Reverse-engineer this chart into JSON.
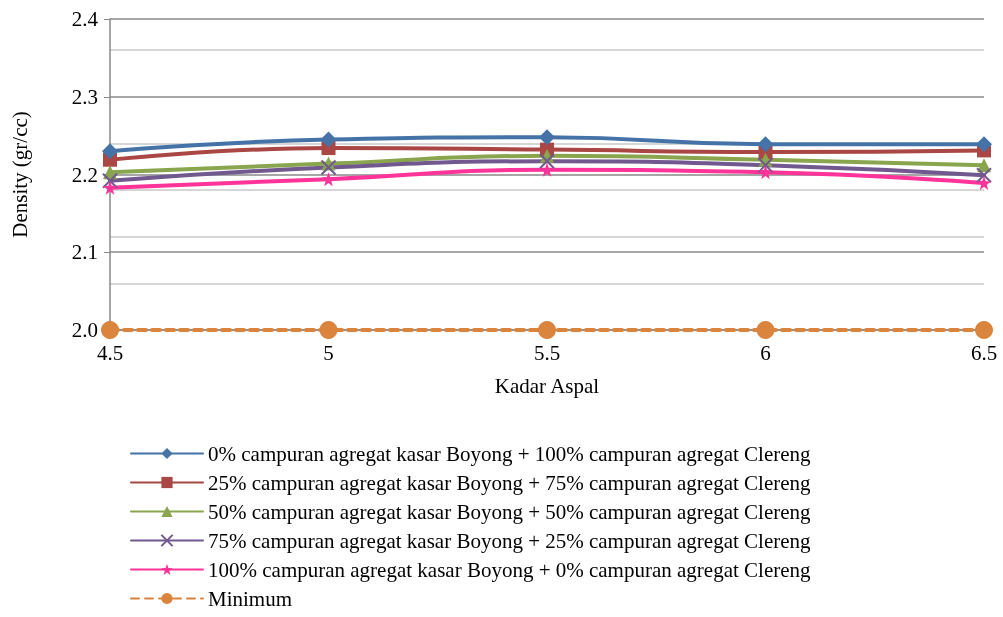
{
  "chart_data": {
    "type": "line",
    "xlabel": "Kadar Aspal",
    "ylabel": "Density (gr/cc)",
    "x": [
      4.5,
      5,
      5.5,
      6,
      6.5
    ],
    "xlim": [
      4.5,
      6.5
    ],
    "xticks": [
      4.5,
      5,
      5.5,
      6,
      6.5
    ],
    "ylim": [
      2.0,
      2.4
    ],
    "yticks": [
      {
        "value": 2.0,
        "label": "2.0"
      },
      {
        "value": 2.06,
        "label": null
      },
      {
        "value": 2.1,
        "label": "2.1"
      },
      {
        "value": 2.12,
        "label": null
      },
      {
        "value": 2.18,
        "label": null
      },
      {
        "value": 2.2,
        "label": "2.2"
      },
      {
        "value": 2.24,
        "label": null
      },
      {
        "value": 2.3,
        "label": "2.3"
      },
      {
        "value": 2.36,
        "label": null
      },
      {
        "value": 2.4,
        "label": "2.4"
      }
    ],
    "grid": "y",
    "legend": "bottom",
    "series": [
      {
        "name": "0% campuran agregat kasar Boyong + 100% campuran agregat Clereng",
        "color": "#4572a7",
        "marker": "diamond",
        "values": [
          2.23,
          2.245,
          2.248,
          2.239,
          2.239
        ]
      },
      {
        "name": "25% campuran agregat kasar Boyong + 75% campuran agregat Clereng",
        "color": "#aa4643",
        "marker": "square",
        "values": [
          2.219,
          2.234,
          2.232,
          2.229,
          2.231
        ]
      },
      {
        "name": "50% campuran agregat kasar Boyong + 50% campuran agregat Clereng",
        "color": "#89a54e",
        "marker": "triangle",
        "values": [
          2.203,
          2.214,
          2.224,
          2.219,
          2.212
        ]
      },
      {
        "name": "75% campuran agregat kasar Boyong + 25% campuran agregat Clereng",
        "color": "#71588f",
        "marker": "cross",
        "values": [
          2.192,
          2.209,
          2.217,
          2.212,
          2.199
        ]
      },
      {
        "name": "100% campuran agregat kasar Boyong + 0% campuran agregat Clereng",
        "color": "#ff3399",
        "marker": "star",
        "values": [
          2.183,
          2.194,
          2.206,
          2.203,
          2.189
        ]
      },
      {
        "name": "Minimum",
        "color": "#db843d",
        "marker": "circle",
        "line_style": "dashed",
        "values": [
          2.0,
          2.0,
          2.0,
          2.0,
          2.0
        ]
      }
    ]
  }
}
